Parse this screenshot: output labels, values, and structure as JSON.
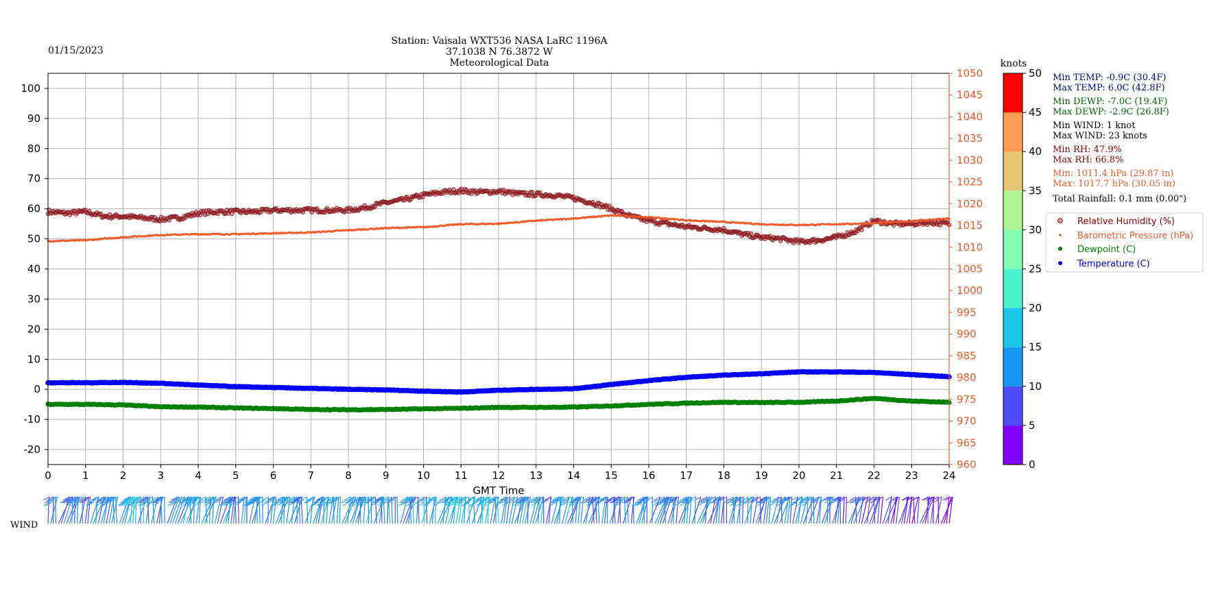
{
  "header": {
    "date": "01/15/2023",
    "title_line1": "Station:  Vaisala WXT536  NASA LaRC 1196A",
    "title_line2": "37.1038 N 76.3872 W",
    "title_line3": "Meteorological Data"
  },
  "colors": {
    "header": "#006400",
    "relative_humidity": "#8b0000",
    "pressure": "#f05a28",
    "dewpoint": "#008000",
    "temperature": "#0000ff",
    "stats_temp": "#00008b",
    "stats_dewp": "#006400",
    "stats_wind": "#000000",
    "stats_rh": "#8b0000",
    "stats_pres": "#f05a28",
    "stats_rain": "#000000"
  },
  "colorbar": {
    "title": "knots",
    "ticks": [
      "0",
      "5",
      "10",
      "15",
      "20",
      "25",
      "30",
      "35",
      "40",
      "45",
      "50"
    ],
    "colors": [
      "#7f00ff",
      "#4d4dfc",
      "#1996f3",
      "#1ac7e8",
      "#4cf2ce",
      "#80ffb4",
      "#b2f396",
      "#e6c874",
      "#ff9a54",
      "#ff5a2e",
      "#ff0000"
    ]
  },
  "stats": {
    "min_temp": "Min TEMP: -0.9C (30.4F)",
    "max_temp": "Max TEMP: 6.0C (42.8F)",
    "min_dewp": "Min DEWP: -7.0C (19.4F)",
    "max_dewp": "Max DEWP: -2.9C (26.8F)",
    "min_wind": "Min WIND: 1 knot",
    "max_wind": "Max WIND: 23 knots",
    "min_rh": "Min RH: 47.9%",
    "max_rh": "Max RH: 66.8%",
    "min_pres": "Min: 1011.4 hPa (29.87 in)",
    "max_pres": "Max: 1017.7 hPa (30.05 in)",
    "rainfall": "Total Rainfall: 0.1 mm (0.00\")"
  },
  "wind_label": "WIND",
  "chart_data": {
    "type": "scatter",
    "xlabel": "GMT Time",
    "xlim": [
      0,
      24
    ],
    "x_ticks": [
      "0",
      "1",
      "2",
      "3",
      "4",
      "5",
      "6",
      "7",
      "8",
      "9",
      "10",
      "11",
      "12",
      "13",
      "14",
      "15",
      "16",
      "17",
      "18",
      "19",
      "20",
      "21",
      "22",
      "23",
      "24"
    ],
    "ylim_left": [
      -25,
      105
    ],
    "y_ticks_left": [
      "-20",
      "-10",
      "0",
      "10",
      "20",
      "30",
      "40",
      "50",
      "60",
      "70",
      "80",
      "90",
      "100"
    ],
    "ylim_right": [
      960,
      1050
    ],
    "y_ticks_right": [
      "960",
      "965",
      "970",
      "975",
      "980",
      "985",
      "990",
      "995",
      "1000",
      "1005",
      "1010",
      "1015",
      "1020",
      "1025",
      "1030",
      "1035",
      "1040",
      "1045",
      "1050"
    ],
    "grid": true,
    "legend_position": "right",
    "series": [
      {
        "name": "Relative Humidity (%)",
        "axis": "left",
        "x": [
          0,
          0.5,
          1,
          1.5,
          2,
          2.5,
          3,
          3.5,
          4,
          4.5,
          5,
          5.5,
          6,
          6.5,
          7,
          7.5,
          8,
          8.5,
          9,
          9.5,
          10,
          10.5,
          11,
          11.5,
          12,
          12.5,
          13,
          13.5,
          14,
          14.5,
          15,
          15.5,
          16,
          16.5,
          17,
          17.5,
          18,
          18.5,
          19,
          19.5,
          20,
          20.5,
          21,
          21.5,
          22,
          22.5,
          23,
          23.5,
          24
        ],
        "values": [
          59,
          58.5,
          59,
          57.5,
          57.5,
          57,
          56.5,
          57,
          58.5,
          59,
          59,
          59,
          59.5,
          59.5,
          59.5,
          59.5,
          59.5,
          60.5,
          62,
          63,
          64.5,
          65.5,
          66,
          65.5,
          65.8,
          65,
          64.8,
          64.5,
          63.5,
          62,
          60,
          57.5,
          56,
          55,
          54,
          53.5,
          53,
          51.5,
          50.5,
          50,
          49,
          49.5,
          50.5,
          52.5,
          56,
          55,
          55,
          55.5,
          55
        ]
      },
      {
        "name": "Barometric Pressure (hPa)",
        "axis": "right",
        "x": [
          0,
          1,
          2,
          3,
          4,
          5,
          6,
          7,
          8,
          9,
          10,
          11,
          12,
          13,
          14,
          15,
          16,
          17,
          18,
          19,
          20,
          21,
          22,
          23,
          24
        ],
        "values": [
          1011.4,
          1011.6,
          1012.3,
          1012.8,
          1013.0,
          1013.0,
          1013.2,
          1013.4,
          1013.9,
          1014.4,
          1014.6,
          1015.3,
          1015.4,
          1016.1,
          1016.6,
          1017.3,
          1016.9,
          1016.2,
          1015.8,
          1015.3,
          1015.1,
          1015.3,
          1015.5,
          1016.0,
          1016.6
        ]
      },
      {
        "name": "Dewpoint (C)",
        "axis": "left",
        "x": [
          0,
          1,
          2,
          3,
          4,
          5,
          6,
          7,
          8,
          9,
          10,
          11,
          12,
          13,
          14,
          15,
          16,
          17,
          18,
          19,
          20,
          21,
          22,
          23,
          24
        ],
        "values": [
          -5.0,
          -5.0,
          -5.2,
          -5.8,
          -5.9,
          -6.2,
          -6.4,
          -6.7,
          -6.8,
          -6.7,
          -6.5,
          -6.3,
          -6.0,
          -6.0,
          -5.9,
          -5.5,
          -5.0,
          -4.6,
          -4.3,
          -4.4,
          -4.3,
          -3.9,
          -3.0,
          -3.9,
          -4.3
        ]
      },
      {
        "name": "Temperature (C)",
        "axis": "left",
        "x": [
          0,
          1,
          2,
          3,
          4,
          5,
          6,
          7,
          8,
          9,
          10,
          11,
          12,
          13,
          14,
          15,
          16,
          17,
          18,
          19,
          20,
          21,
          22,
          23,
          24
        ],
        "values": [
          2.2,
          2.2,
          2.3,
          2.0,
          1.4,
          0.9,
          0.6,
          0.3,
          0.0,
          -0.2,
          -0.6,
          -0.9,
          -0.3,
          0.0,
          0.2,
          1.6,
          2.9,
          4.0,
          4.7,
          5.2,
          5.8,
          5.8,
          5.6,
          4.9,
          4.2
        ]
      }
    ],
    "wind": {
      "label": "WIND",
      "x": [
        0,
        1,
        2,
        3,
        4,
        5,
        6,
        7,
        8,
        9,
        10,
        11,
        12,
        13,
        14,
        15,
        16,
        17,
        18,
        19,
        20,
        21,
        22,
        23,
        24
      ],
      "speed_knots": [
        10,
        12,
        14,
        12,
        13,
        12,
        11,
        12,
        12,
        12,
        12,
        14,
        13,
        12,
        12,
        11,
        11,
        11,
        10,
        10,
        10,
        9,
        6,
        4,
        4
      ]
    }
  }
}
